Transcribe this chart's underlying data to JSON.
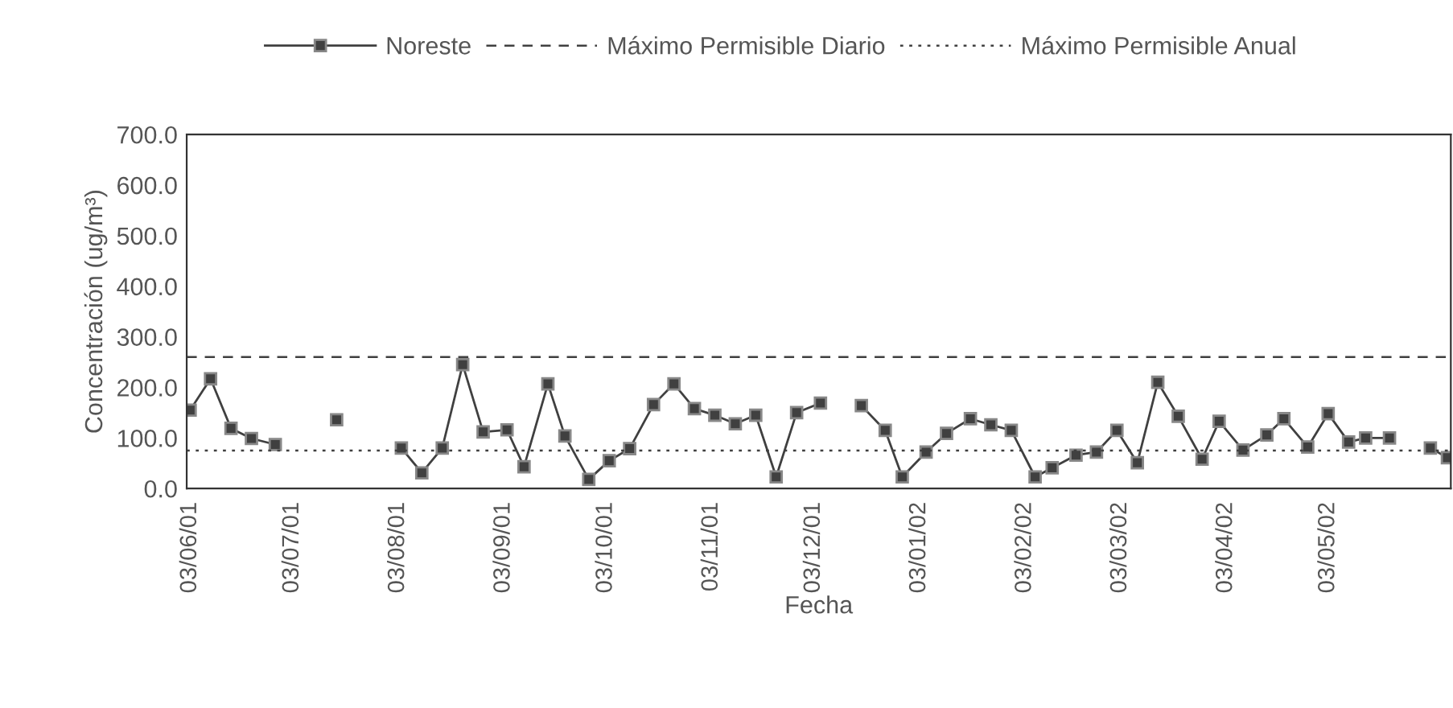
{
  "chart_data": {
    "type": "line",
    "xlabel": "Fecha",
    "ylabel": "Concentración (ug/m³)",
    "xlim": [
      "2001-06-02",
      "2002-06-08"
    ],
    "xticks": [
      {
        "value": "2001-06-03",
        "label": "03/06/01"
      },
      {
        "value": "2001-07-03",
        "label": "03/07/01"
      },
      {
        "value": "2001-08-03",
        "label": "03/08/01"
      },
      {
        "value": "2001-09-03",
        "label": "03/09/01"
      },
      {
        "value": "2001-10-03",
        "label": "03/10/01"
      },
      {
        "value": "2001-11-03",
        "label": "03/11/01"
      },
      {
        "value": "2001-12-03",
        "label": "03/12/01"
      },
      {
        "value": "2002-01-03",
        "label": "03/01/02"
      },
      {
        "value": "2002-02-03",
        "label": "03/02/02"
      },
      {
        "value": "2002-03-03",
        "label": "03/03/02"
      },
      {
        "value": "2002-04-03",
        "label": "03/04/02"
      },
      {
        "value": "2002-05-03",
        "label": "03/05/02"
      }
    ],
    "ylim": [
      0,
      700
    ],
    "yticks": [
      {
        "value": 0,
        "label": "0.0"
      },
      {
        "value": 100,
        "label": "100.0"
      },
      {
        "value": 200,
        "label": "200.0"
      },
      {
        "value": 300,
        "label": "300.0"
      },
      {
        "value": 400,
        "label": "400.0"
      },
      {
        "value": 500,
        "label": "500.0"
      },
      {
        "value": 600,
        "label": "600.0"
      },
      {
        "value": 700,
        "label": "700.0"
      }
    ],
    "grid": false,
    "legend": "top",
    "marker": "square",
    "line_style": "solid",
    "series": [
      {
        "name": "Noreste",
        "color": "#404040",
        "x": [
          "2001-06-03",
          "2001-06-09",
          "2001-06-15",
          "2001-06-21",
          "2001-06-28",
          "2001-07-07",
          "2001-07-16",
          "2001-07-25",
          "2001-08-04",
          "2001-08-10",
          "2001-08-16",
          "2001-08-22",
          "2001-08-28",
          "2001-09-04",
          "2001-09-09",
          "2001-09-16",
          "2001-09-21",
          "2001-09-28",
          "2001-10-04",
          "2001-10-10",
          "2001-10-17",
          "2001-10-23",
          "2001-10-29",
          "2001-11-04",
          "2001-11-10",
          "2001-11-16",
          "2001-11-22",
          "2001-11-28",
          "2001-12-05",
          "2001-12-11",
          "2001-12-17",
          "2001-12-24",
          "2001-12-29",
          "2002-01-05",
          "2002-01-11",
          "2002-01-18",
          "2002-01-24",
          "2002-01-30",
          "2002-02-06",
          "2002-02-11",
          "2002-02-18",
          "2002-02-24",
          "2002-03-02",
          "2002-03-08",
          "2002-03-14",
          "2002-03-20",
          "2002-03-27",
          "2002-04-01",
          "2002-04-08",
          "2002-04-15",
          "2002-04-20",
          "2002-04-27",
          "2002-05-03",
          "2002-05-09",
          "2002-05-14",
          "2002-05-21",
          "2002-05-27",
          "2002-06-02",
          "2002-06-07"
        ],
        "values": [
          155,
          217,
          119,
          99,
          87,
          null,
          136,
          null,
          80,
          31,
          80,
          245,
          112,
          116,
          43,
          207,
          104,
          18,
          55,
          79,
          166,
          207,
          158,
          145,
          128,
          145,
          23,
          150,
          169,
          null,
          164,
          115,
          23,
          72,
          109,
          138,
          126,
          115,
          23,
          41,
          66,
          72,
          115,
          51,
          210,
          143,
          58,
          133,
          76,
          106,
          138,
          82,
          148,
          92,
          100,
          100,
          null,
          80,
          61
        ]
      }
    ],
    "ref_lines": [
      {
        "axis": "y",
        "value": 260,
        "label": "Máximo Permisible Diario",
        "color": "#404040",
        "line_style": "dashed"
      },
      {
        "axis": "y",
        "value": 75,
        "label": "Máximo Permisible Anual",
        "color": "#404040",
        "line_style": "dotted"
      }
    ]
  }
}
